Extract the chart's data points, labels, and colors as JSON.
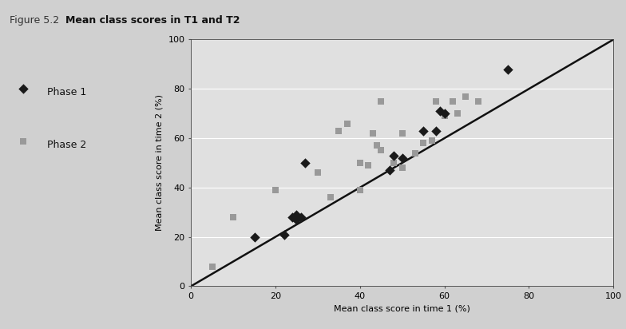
{
  "title_prefix": "Figure 5.2",
  "title_bold": "Mean class scores in T1 and T2",
  "xlabel": "Mean class score in time 1 (%)",
  "ylabel": "Mean class score in time 2 (%)",
  "xlim": [
    0,
    100
  ],
  "ylim": [
    0,
    100
  ],
  "xticks": [
    0,
    20,
    40,
    60,
    80,
    100
  ],
  "yticks": [
    0,
    20,
    40,
    60,
    80,
    100
  ],
  "plot_bg_color": "#e0e0e0",
  "outer_bg_color": "#d0d0d0",
  "phase1_color": "#1a1a1a",
  "phase2_color": "#999999",
  "phase1_x": [
    15,
    22,
    24,
    25,
    25,
    26,
    27,
    47,
    48,
    50,
    55,
    58,
    59,
    60,
    75
  ],
  "phase1_y": [
    20,
    21,
    28,
    27,
    29,
    28,
    50,
    47,
    53,
    52,
    63,
    63,
    71,
    70,
    88
  ],
  "phase2_x": [
    5,
    10,
    20,
    25,
    30,
    33,
    35,
    37,
    40,
    40,
    42,
    43,
    44,
    45,
    45,
    48,
    50,
    50,
    53,
    55,
    57,
    58,
    60,
    62,
    63,
    65,
    68
  ],
  "phase2_y": [
    8,
    28,
    39,
    28,
    46,
    36,
    63,
    66,
    39,
    50,
    49,
    62,
    57,
    55,
    75,
    50,
    62,
    48,
    54,
    58,
    59,
    75,
    69,
    75,
    70,
    77,
    75
  ],
  "line_color": "#111111",
  "line_width": 1.8,
  "marker_size_phase1": 40,
  "marker_size_phase2": 38,
  "legend_phase1": "Phase 1",
  "legend_phase2": "Phase 2",
  "title_prefix_fontsize": 9,
  "title_bold_fontsize": 9,
  "axis_label_fontsize": 8,
  "tick_fontsize": 8
}
